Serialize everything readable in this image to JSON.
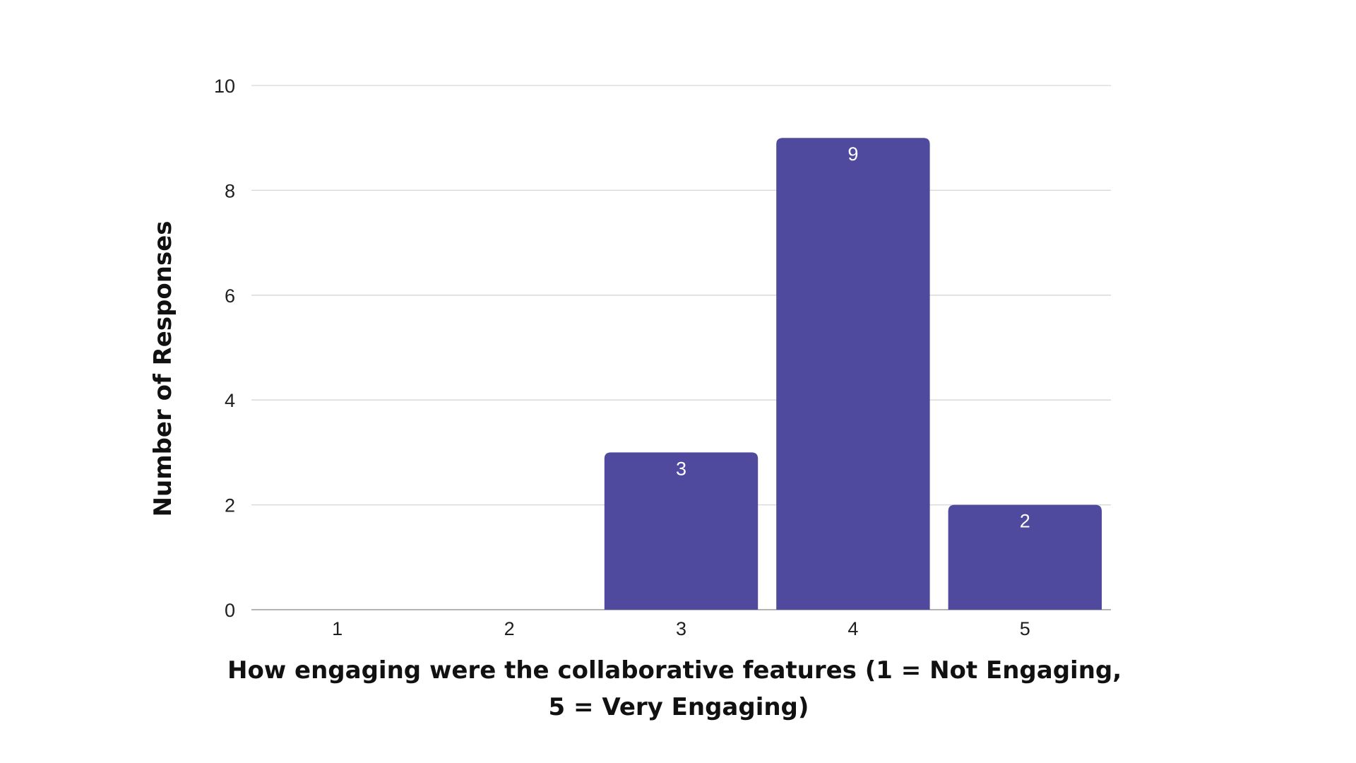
{
  "chart_data": {
    "type": "bar",
    "categories": [
      "1",
      "2",
      "3",
      "4",
      "5"
    ],
    "values": [
      0,
      0,
      3,
      9,
      2
    ],
    "data_labels": [
      "",
      "",
      "3",
      "9",
      "2"
    ],
    "title": "",
    "xlabel": "How engaging were the collaborative features (1 = Not Engaging, 5 = Very Engaging)",
    "xlabel_lines": [
      "How engaging were the collaborative features (1 = Not Engaging,",
      "5 = Very Engaging)"
    ],
    "ylabel": "Number of Responses",
    "ylim": [
      0,
      10
    ],
    "yticks": [
      "0",
      "2",
      "4",
      "6",
      "8",
      "10"
    ],
    "grid": true,
    "legend": "none",
    "bar_color": "#4f4a9e"
  }
}
